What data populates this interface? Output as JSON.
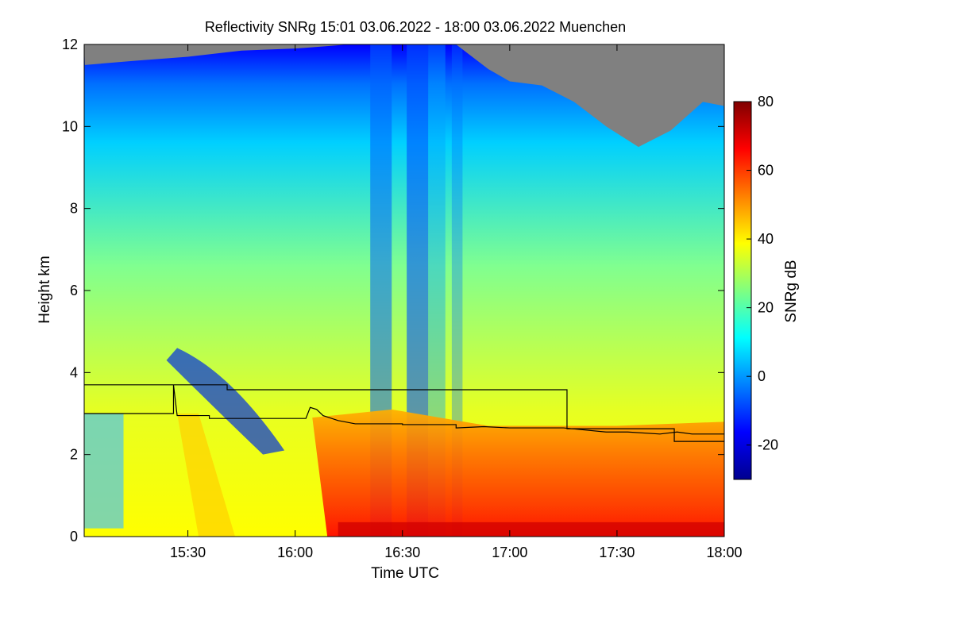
{
  "chart_data": {
    "type": "heatmap",
    "title": "Reflectivity SNRg   15:01 03.06.2022 - 18:00 03.06.2022 Muenchen",
    "xlabel": "Time UTC",
    "ylabel": "Height km",
    "colorbar_label": "SNRg dB",
    "xlim": [
      15.0167,
      18.0
    ],
    "ylim": [
      0,
      12
    ],
    "x_ticks": [
      {
        "value": 15.5,
        "label": "15:30"
      },
      {
        "value": 16.0,
        "label": "16:00"
      },
      {
        "value": 16.5,
        "label": "16:30"
      },
      {
        "value": 17.0,
        "label": "17:00"
      },
      {
        "value": 17.5,
        "label": "17:30"
      },
      {
        "value": 18.0,
        "label": "18:00"
      }
    ],
    "y_ticks": [
      {
        "value": 0,
        "label": "0"
      },
      {
        "value": 2,
        "label": "2"
      },
      {
        "value": 4,
        "label": "4"
      },
      {
        "value": 6,
        "label": "6"
      },
      {
        "value": 8,
        "label": "8"
      },
      {
        "value": 10,
        "label": "10"
      },
      {
        "value": 12,
        "label": "12"
      }
    ],
    "colorbar": {
      "range": [
        -30,
        80
      ],
      "ticks": [
        {
          "value": -20,
          "label": "-20"
        },
        {
          "value": 0,
          "label": "0"
        },
        {
          "value": 20,
          "label": "20"
        },
        {
          "value": 40,
          "label": "40"
        },
        {
          "value": 60,
          "label": "60"
        },
        {
          "value": 80,
          "label": "80"
        }
      ],
      "colormap": [
        "#00008f",
        "#0000ff",
        "#0080ff",
        "#00ffff",
        "#80ff80",
        "#ffff00",
        "#ff8000",
        "#ff0000",
        "#800000"
      ]
    },
    "no_data_color": "#808080",
    "echo_top_km": [
      [
        15.02,
        11.5
      ],
      [
        15.25,
        11.6
      ],
      [
        15.5,
        11.7
      ],
      [
        15.75,
        11.85
      ],
      [
        16.0,
        11.9
      ],
      [
        16.25,
        12.0
      ],
      [
        16.5,
        12.0
      ],
      [
        16.75,
        12.0
      ],
      [
        16.9,
        11.4
      ],
      [
        17.0,
        11.1
      ],
      [
        17.15,
        11.0
      ],
      [
        17.3,
        10.6
      ],
      [
        17.45,
        10.0
      ],
      [
        17.6,
        9.5
      ],
      [
        17.75,
        9.9
      ],
      [
        17.9,
        10.6
      ],
      [
        18.0,
        10.5
      ]
    ],
    "lines": [
      {
        "style": "step",
        "color": "#000000",
        "points": [
          [
            15.0167,
            3.7
          ],
          [
            15.683,
            3.7
          ],
          [
            15.683,
            3.58
          ],
          [
            17.267,
            3.58
          ],
          [
            17.267,
            2.63
          ],
          [
            17.767,
            2.63
          ],
          [
            17.767,
            2.32
          ],
          [
            18.0,
            2.32
          ]
        ]
      },
      {
        "style": "jagged",
        "color": "#000000",
        "points": [
          [
            15.0167,
            3.0
          ],
          [
            15.433,
            3.0
          ],
          [
            15.433,
            3.7
          ],
          [
            15.45,
            2.95
          ],
          [
            15.6,
            2.95
          ],
          [
            15.6,
            2.88
          ],
          [
            16.05,
            2.88
          ],
          [
            16.07,
            3.15
          ],
          [
            16.1,
            3.1
          ],
          [
            16.13,
            2.95
          ],
          [
            16.2,
            2.83
          ],
          [
            16.28,
            2.75
          ],
          [
            16.5,
            2.75
          ],
          [
            16.5,
            2.73
          ],
          [
            16.75,
            2.73
          ],
          [
            16.75,
            2.65
          ],
          [
            16.88,
            2.68
          ],
          [
            17.0,
            2.65
          ],
          [
            17.25,
            2.65
          ],
          [
            17.35,
            2.6
          ],
          [
            17.45,
            2.55
          ],
          [
            17.55,
            2.55
          ],
          [
            17.7,
            2.5
          ],
          [
            17.78,
            2.55
          ],
          [
            17.85,
            2.5
          ],
          [
            18.0,
            2.5
          ]
        ]
      }
    ]
  }
}
